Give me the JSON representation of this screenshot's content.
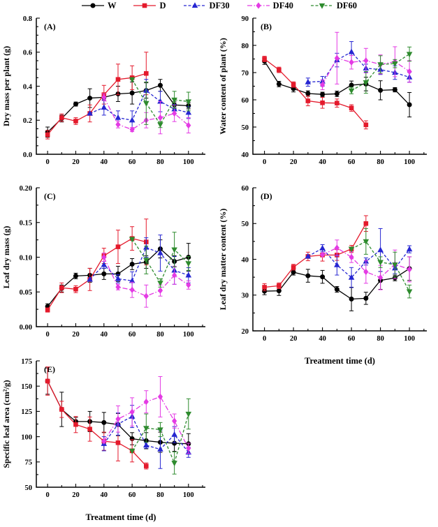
{
  "figure": {
    "background": "#ffffff",
    "axis_color": "#000000",
    "legend": {
      "items": [
        {
          "label": "W",
          "series": "W"
        },
        {
          "label": "D",
          "series": "D"
        },
        {
          "label": "DF30",
          "series": "DF30"
        },
        {
          "label": "DF40",
          "series": "DF40"
        },
        {
          "label": "DF60",
          "series": "DF60"
        }
      ]
    }
  },
  "series_styles": {
    "W": {
      "color": "#000000",
      "marker": "circle",
      "dash": "solid"
    },
    "D": {
      "color": "#e41a2c",
      "marker": "square",
      "dash": "solid"
    },
    "DF30": {
      "color": "#2626d2",
      "marker": "triangle-up",
      "dash": "dashed"
    },
    "DF40": {
      "color": "#e43be4",
      "marker": "diamond",
      "dash": "dashdot"
    },
    "DF60": {
      "color": "#2e8b2e",
      "marker": "triangle-down",
      "dash": "dashed"
    }
  },
  "chart_data": [
    {
      "id": "A",
      "type": "line",
      "tag": "(A)",
      "ylabel": "Dry mass per plant (g)",
      "xlabel": "",
      "xlim": [
        -8,
        112
      ],
      "ylim": [
        0,
        0.8
      ],
      "grid": false,
      "xticks": [
        0,
        20,
        40,
        60,
        80,
        100
      ],
      "xtick_labels": [
        "0",
        "20",
        "40",
        "60",
        "80",
        "100"
      ],
      "xminor": [
        10,
        30,
        50,
        70,
        90,
        110
      ],
      "yticks": [
        0,
        0.2,
        0.4,
        0.6,
        0.8
      ],
      "ytick_labels": [
        "0.0",
        "0.2",
        "0.4",
        "0.6",
        "0.8"
      ],
      "yminor": [
        0.05,
        0.1,
        0.15,
        0.25,
        0.3,
        0.35,
        0.45,
        0.5,
        0.55,
        0.65,
        0.7,
        0.75
      ],
      "series": [
        {
          "name": "W",
          "x": [
            0,
            10,
            20,
            30,
            40,
            50,
            60,
            70,
            80,
            90,
            100
          ],
          "y": [
            0.13,
            0.21,
            0.295,
            0.33,
            0.335,
            0.355,
            0.36,
            0.375,
            0.405,
            0.29,
            0.285
          ],
          "err": [
            0.03,
            0.02,
            0.012,
            0.055,
            0.018,
            0.045,
            0.065,
            0.045,
            0.035,
            0.018,
            0.018
          ]
        },
        {
          "name": "D",
          "x": [
            0,
            10,
            20,
            30,
            40,
            50,
            60,
            70
          ],
          "y": [
            0.115,
            0.215,
            0.195,
            0.24,
            0.35,
            0.44,
            0.45,
            0.475
          ],
          "err": [
            0.025,
            0.022,
            0.02,
            0.05,
            0.055,
            0.09,
            0.07,
            0.125
          ]
        },
        {
          "name": "DF30",
          "x": [
            30,
            40,
            50,
            60,
            70,
            80,
            90,
            100
          ],
          "y": [
            0.24,
            0.275,
            0.215,
            0.2,
            0.375,
            0.31,
            0.265,
            0.245
          ],
          "err": [
            0,
            0.045,
            0.04,
            0.055,
            0.065,
            0.06,
            0.028,
            0.035
          ]
        },
        {
          "name": "DF40",
          "x": [
            40,
            50,
            60,
            70,
            80,
            90,
            100
          ],
          "y": [
            0.335,
            0.175,
            0.145,
            0.2,
            0.215,
            0.24,
            0.17
          ],
          "err": [
            0.02,
            0.02,
            0.012,
            0.045,
            0.095,
            0.048,
            0.045
          ]
        },
        {
          "name": "DF60",
          "x": [
            60,
            70,
            80,
            90,
            100
          ],
          "y": [
            0.44,
            0.3,
            0.175,
            0.32,
            0.31
          ],
          "err": [
            0,
            0.125,
            0.018,
            0.05,
            0.055
          ]
        }
      ]
    },
    {
      "id": "B",
      "type": "line",
      "tag": "(B)",
      "ylabel": "Water content of plant (%)",
      "xlabel": "",
      "xlim": [
        -8,
        112
      ],
      "ylim": [
        40,
        90
      ],
      "grid": false,
      "xticks": [
        0,
        20,
        40,
        60,
        80,
        100
      ],
      "xtick_labels": [
        "0",
        "20",
        "40",
        "60",
        "80",
        "100"
      ],
      "xminor": [
        10,
        30,
        50,
        70,
        90,
        110
      ],
      "yticks": [
        40,
        50,
        60,
        70,
        80,
        90
      ],
      "ytick_labels": [
        "40",
        "50",
        "60",
        "70",
        "80",
        "90"
      ],
      "yminor": [
        45,
        55,
        65,
        75,
        85
      ],
      "series": [
        {
          "name": "W",
          "x": [
            0,
            10,
            20,
            30,
            40,
            50,
            60,
            70,
            80,
            90,
            100
          ],
          "y": [
            74.2,
            65.8,
            64.1,
            62.3,
            62.0,
            62.2,
            65.4,
            65.8,
            63.5,
            63.7,
            58.2
          ],
          "err": [
            1.2,
            1.0,
            1.2,
            1.0,
            0.8,
            1.0,
            1.5,
            2.5,
            3.5,
            0.8,
            4.5
          ]
        },
        {
          "name": "D",
          "x": [
            0,
            10,
            20,
            30,
            40,
            50,
            60,
            70
          ],
          "y": [
            75.0,
            71.0,
            65.6,
            59.6,
            58.9,
            58.8,
            57.0,
            50.8
          ],
          "err": [
            1.0,
            1.0,
            1.0,
            1.8,
            2.0,
            1.5,
            1.2,
            1.5
          ]
        },
        {
          "name": "DF30",
          "x": [
            30,
            40,
            50,
            60,
            70,
            80,
            90,
            100
          ],
          "y": [
            66.5,
            66.8,
            74.6,
            77.6,
            71.6,
            71.1,
            70.0,
            68.3
          ],
          "err": [
            1.5,
            1.8,
            2.5,
            3.8,
            1.5,
            1.8,
            2.5,
            1.8
          ]
        },
        {
          "name": "DF40",
          "x": [
            40,
            50,
            60,
            70,
            80,
            90,
            100
          ],
          "y": [
            65.5,
            75.3,
            73.8,
            74.4,
            73.0,
            74.0,
            70.4
          ],
          "err": [
            1.8,
            9.5,
            2.5,
            4.5,
            3.5,
            5.5,
            4.0
          ]
        },
        {
          "name": "DF60",
          "x": [
            60,
            70,
            80,
            90,
            100
          ],
          "y": [
            63.4,
            66.4,
            73.0,
            73.3,
            76.8
          ],
          "err": [
            1.2,
            4.0,
            3.2,
            1.5,
            2.6
          ]
        }
      ]
    },
    {
      "id": "C",
      "type": "line",
      "tag": "(C)",
      "ylabel": "Leaf dry mass (g)",
      "xlabel": "",
      "xlim": [
        -8,
        112
      ],
      "ylim": [
        0,
        0.2
      ],
      "grid": false,
      "xticks": [
        0,
        20,
        40,
        60,
        80,
        100
      ],
      "xtick_labels": [
        "0",
        "20",
        "40",
        "60",
        "80",
        "100"
      ],
      "xminor": [
        10,
        30,
        50,
        70,
        90,
        110
      ],
      "yticks": [
        0,
        0.05,
        0.1,
        0.15,
        0.2
      ],
      "ytick_labels": [
        "0.00",
        "0.05",
        "0.10",
        "0.15",
        "0.20"
      ],
      "yminor": [
        0.025,
        0.075,
        0.125,
        0.175
      ],
      "series": [
        {
          "name": "W",
          "x": [
            0,
            10,
            20,
            30,
            40,
            50,
            60,
            70,
            80,
            90,
            100
          ],
          "y": [
            0.029,
            0.055,
            0.073,
            0.074,
            0.076,
            0.076,
            0.09,
            0.093,
            0.112,
            0.094,
            0.1
          ],
          "err": [
            0.004,
            0.005,
            0.004,
            0.01,
            0.008,
            0.011,
            0.008,
            0.009,
            0.013,
            0.008,
            0.02
          ]
        },
        {
          "name": "D",
          "x": [
            0,
            10,
            20,
            30,
            40,
            50,
            60,
            70
          ],
          "y": [
            0.024,
            0.056,
            0.054,
            0.068,
            0.102,
            0.115,
            0.127,
            0.122
          ],
          "err": [
            0.003,
            0.007,
            0.005,
            0.016,
            0.011,
            0.024,
            0.017,
            0.033
          ]
        },
        {
          "name": "DF30",
          "x": [
            30,
            40,
            50,
            60,
            70,
            80,
            90,
            100
          ],
          "y": [
            0.068,
            0.089,
            0.069,
            0.066,
            0.114,
            0.106,
            0.081,
            0.074
          ],
          "err": [
            0,
            0.005,
            0.006,
            0.013,
            0.014,
            0.026,
            0.02,
            0.011
          ]
        },
        {
          "name": "DF40",
          "x": [
            40,
            50,
            60,
            70,
            80,
            90,
            100
          ],
          "y": [
            0.1,
            0.057,
            0.053,
            0.044,
            0.052,
            0.074,
            0.06
          ],
          "err": [
            0.006,
            0.004,
            0.011,
            0.016,
            0.008,
            0.013,
            0.006
          ]
        },
        {
          "name": "DF60",
          "x": [
            60,
            70,
            80,
            90,
            100
          ],
          "y": [
            0.126,
            0.096,
            0.063,
            0.111,
            0.091
          ],
          "err": [
            0,
            0.02,
            0.006,
            0.025,
            0.01
          ]
        }
      ]
    },
    {
      "id": "D",
      "type": "line",
      "tag": "(D)",
      "ylabel": "Leaf dry matter content (%)",
      "xlabel": "Treatment time (d)",
      "xlim": [
        -8,
        112
      ],
      "ylim": [
        20,
        60
      ],
      "grid": false,
      "xticks": [
        0,
        20,
        40,
        60,
        80,
        100
      ],
      "xtick_labels": [
        "0",
        "20",
        "40",
        "60",
        "80",
        "100"
      ],
      "xminor": [
        10,
        30,
        50,
        70,
        90,
        110
      ],
      "yticks": [
        20,
        30,
        40,
        50,
        60
      ],
      "ytick_labels": [
        "20",
        "30",
        "40",
        "50",
        "60"
      ],
      "yminor": [
        25,
        35,
        45,
        55
      ],
      "series": [
        {
          "name": "W",
          "x": [
            0,
            10,
            20,
            30,
            40,
            50,
            60,
            70,
            80,
            90,
            100
          ],
          "y": [
            31.1,
            31.2,
            36.4,
            35.4,
            35.1,
            31.6,
            28.9,
            29.1,
            34.1,
            34.8,
            37.4
          ],
          "err": [
            1.0,
            1.3,
            0.8,
            1.8,
            1.8,
            0.8,
            3.3,
            1.7,
            2.5,
            0.8,
            3.3
          ]
        },
        {
          "name": "D",
          "x": [
            0,
            10,
            20,
            30,
            40,
            50,
            60,
            70
          ],
          "y": [
            32.2,
            32.6,
            37.8,
            40.8,
            41.2,
            41.2,
            42.9,
            50.0
          ],
          "err": [
            1.0,
            0.8,
            0.8,
            1.2,
            1.7,
            1.5,
            1.0,
            2.2
          ]
        },
        {
          "name": "DF30",
          "x": [
            30,
            40,
            50,
            60,
            70,
            80,
            90,
            100
          ],
          "y": [
            40.8,
            43.1,
            38.4,
            34.9,
            39.4,
            42.6,
            37.5,
            42.8
          ],
          "err": [
            0,
            1.0,
            2.8,
            2.8,
            1.0,
            6.0,
            1.5,
            1.0
          ]
        },
        {
          "name": "DF40",
          "x": [
            40,
            50,
            60,
            70,
            80,
            90,
            100
          ],
          "y": [
            41.3,
            43.2,
            40.6,
            36.5,
            34.9,
            38.6,
            37.2
          ],
          "err": [
            0,
            2.2,
            1.5,
            3.2,
            3.4,
            4.0,
            3.5
          ]
        },
        {
          "name": "DF60",
          "x": [
            60,
            70,
            80,
            90,
            100
          ],
          "y": [
            42.9,
            45.0,
            39.2,
            38.5,
            31.0
          ],
          "err": [
            0,
            3.6,
            1.5,
            3.5,
            1.8
          ]
        }
      ]
    },
    {
      "id": "E",
      "type": "line",
      "tag": "(E)",
      "ylabel": "Specific leaf area (cm²/g)",
      "xlabel": "Treatment time (d)",
      "xlim": [
        -8,
        112
      ],
      "ylim": [
        50,
        175
      ],
      "grid": false,
      "xticks": [
        0,
        20,
        40,
        60,
        80,
        100
      ],
      "xtick_labels": [
        "0",
        "20",
        "40",
        "60",
        "80",
        "100"
      ],
      "xminor": [
        10,
        30,
        50,
        70,
        90,
        110
      ],
      "yticks": [
        50,
        75,
        100,
        125,
        150,
        175
      ],
      "ytick_labels": [
        "50",
        "75",
        "100",
        "125",
        "150",
        "175"
      ],
      "yminor": [
        62.5,
        87.5,
        112.5,
        137.5,
        162.5
      ],
      "series": [
        {
          "name": "W",
          "x": [
            0,
            10,
            20,
            30,
            40,
            50,
            60,
            70,
            80,
            90,
            100
          ],
          "y": [
            155,
            127,
            115,
            115,
            114,
            112,
            98,
            96,
            94.5,
            93.5,
            93
          ],
          "err": [
            13,
            17,
            4,
            10,
            10,
            11,
            6,
            8,
            10,
            8,
            10
          ]
        },
        {
          "name": "D",
          "x": [
            0,
            10,
            20,
            30,
            40,
            50,
            60,
            70
          ],
          "y": [
            155,
            127,
            112,
            107.5,
            95.5,
            94,
            86,
            71
          ],
          "err": [
            14,
            8,
            8,
            12,
            9,
            18,
            11,
            3
          ]
        },
        {
          "name": "DF30",
          "x": [
            40,
            50,
            60,
            70,
            80,
            90,
            100
          ],
          "y": [
            93,
            112.5,
            120,
            91.5,
            87.5,
            102,
            84.5
          ],
          "err": [
            7,
            11,
            11,
            3,
            19,
            8,
            5
          ]
        },
        {
          "name": "DF40",
          "x": [
            40,
            50,
            60,
            70,
            80,
            90,
            100
          ],
          "y": [
            95.5,
            117.5,
            124.5,
            134.5,
            139.5,
            115.5,
            88.5
          ],
          "err": [
            0,
            13,
            14,
            11,
            20,
            7,
            5
          ]
        },
        {
          "name": "DF60",
          "x": [
            60,
            70,
            80,
            90,
            100
          ],
          "y": [
            86,
            108.5,
            107,
            74,
            122.5
          ],
          "err": [
            0,
            14,
            7,
            11,
            15
          ]
        }
      ]
    }
  ]
}
